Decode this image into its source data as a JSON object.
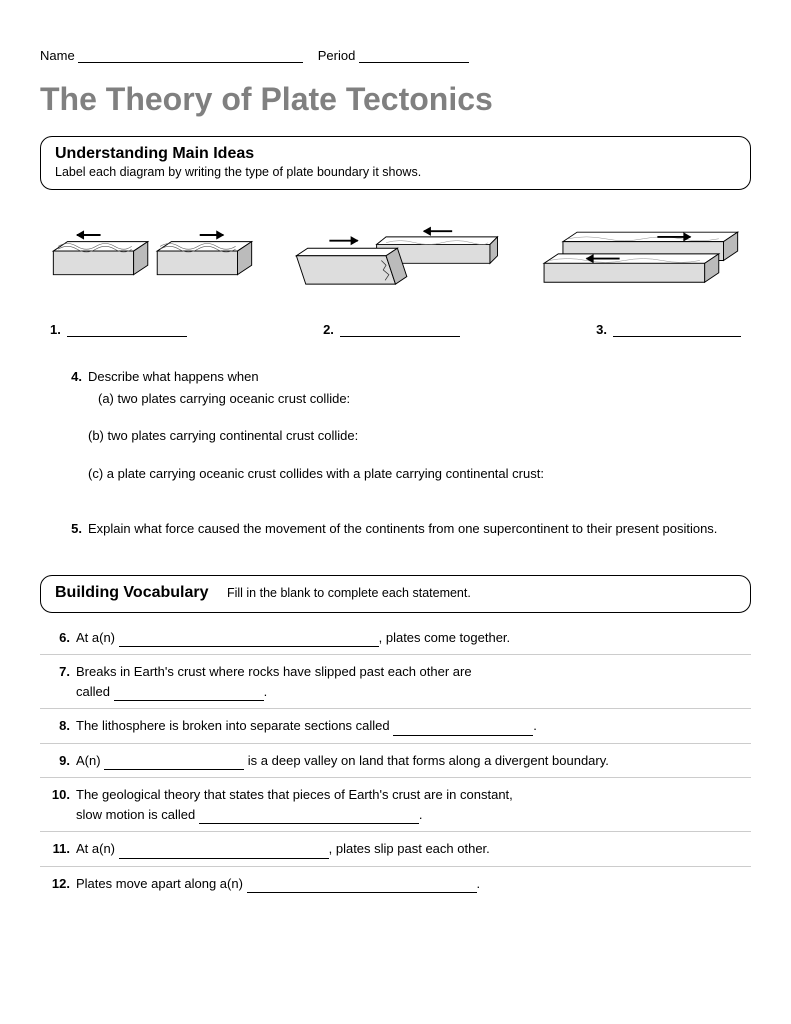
{
  "header": {
    "name_label": "Name",
    "period_label": "Period",
    "name_blank_width": 225,
    "period_blank_width": 110
  },
  "title": "The Theory of Plate Tectonics",
  "section1": {
    "heading": "Understanding Main Ideas",
    "instruction": "Label each diagram by writing the type of plate boundary it shows."
  },
  "diagrams": {
    "labels": [
      "1.",
      "2.",
      "3."
    ],
    "blank_width": 120,
    "colors": {
      "stroke": "#000000",
      "fill_top": "#ffffff",
      "fill_mid": "#dddddd",
      "fill_low": "#bbbbbb"
    }
  },
  "q4": {
    "num": "4.",
    "lead": "Describe what happens when",
    "a": "(a) two plates carrying oceanic crust collide:",
    "b": "(b) two plates carrying continental crust collide:",
    "c": "(c) a plate carrying oceanic crust collides with a plate carrying continental crust:"
  },
  "q5": {
    "num": "5.",
    "text": "Explain what force caused the movement of the continents from one supercontinent to their present positions."
  },
  "section2": {
    "heading": "Building Vocabulary",
    "instruction": "Fill in the blank to complete each statement."
  },
  "vocab": [
    {
      "num": "6.",
      "pre": "At a(n) ",
      "blank": 260,
      "post": ", plates come together."
    },
    {
      "num": "7.",
      "pre": "Breaks in Earth's crust where rocks have slipped past each other are\ncalled ",
      "blank": 150,
      "post": "."
    },
    {
      "num": "8.",
      "pre": "The lithosphere is broken into separate sections called ",
      "blank": 140,
      "post": "."
    },
    {
      "num": "9.",
      "pre": "A(n) ",
      "blank": 140,
      "post": " is a deep valley on land that forms along a divergent boundary."
    },
    {
      "num": "10.",
      "pre": "The geological theory that states that pieces of Earth's crust are in constant,\nslow motion is called ",
      "blank": 220,
      "post": "."
    },
    {
      "num": "11.",
      "pre": "At a(n) ",
      "blank": 210,
      "post": ", plates slip past  each other."
    },
    {
      "num": "12.",
      "pre": "Plates move apart along a(n) ",
      "blank": 230,
      "post": "."
    }
  ],
  "style": {
    "title_color": "#808080",
    "body_font_size": 13,
    "heading_font_size": 16,
    "border_radius": 12,
    "divider_color": "#cccccc"
  }
}
